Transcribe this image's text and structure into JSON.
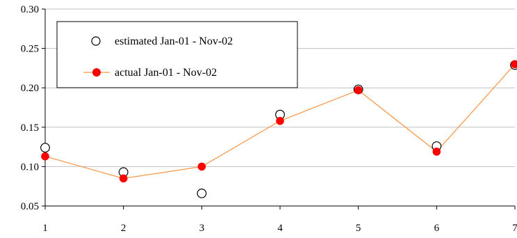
{
  "chart_data": {
    "type": "line",
    "title": "",
    "xlabel": "",
    "ylabel": "",
    "x": [
      1,
      2,
      3,
      4,
      5,
      6,
      7
    ],
    "xlim": [
      1,
      7
    ],
    "ylim": [
      0.05,
      0.3
    ],
    "x_ticks": [
      "1",
      "2",
      "3",
      "4",
      "5",
      "6",
      "7"
    ],
    "y_ticks": [
      "0.05",
      "0.10",
      "0.15",
      "0.20",
      "0.25",
      "0.30"
    ],
    "y_tick_values": [
      0.05,
      0.1,
      0.15,
      0.2,
      0.25,
      0.3
    ],
    "grid": "horizontal",
    "legend_position": "top-left",
    "series": [
      {
        "name": "estimated Jan-01 - Nov-02",
        "style": "open-circle-markers",
        "color": "#000000",
        "values": [
          0.124,
          0.093,
          0.066,
          0.166,
          0.198,
          0.126,
          0.229
        ]
      },
      {
        "name": "actual Jan-01 - Nov-02",
        "style": "line-with-filled-markers",
        "color": "#ff0000",
        "line_color": "#f79646",
        "values": [
          0.113,
          0.085,
          0.1,
          0.158,
          0.197,
          0.119,
          0.23
        ]
      }
    ]
  }
}
